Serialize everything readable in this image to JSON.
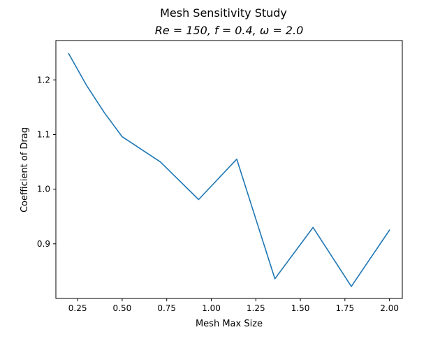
{
  "chart_data": {
    "type": "line",
    "title": "Mesh Sensitivity Study",
    "subtitle": "Re = 150, f = 0.4, ω = 2.0",
    "xlabel": "Mesh Max Size",
    "ylabel": "Coefficient of Drag",
    "xlim": [
      0.128,
      2.072
    ],
    "ylim": [
      0.8,
      1.272
    ],
    "xticks": [
      0.25,
      0.5,
      0.75,
      1.0,
      1.25,
      1.5,
      1.75,
      2.0
    ],
    "xtick_labels": [
      "0.25",
      "0.50",
      "0.75",
      "1.00",
      "1.25",
      "1.50",
      "1.75",
      "2.00"
    ],
    "yticks": [
      0.9,
      1.0,
      1.1,
      1.2
    ],
    "ytick_labels": [
      "0.9",
      "1.0",
      "1.1",
      "1.2"
    ],
    "grid": false,
    "series": [
      {
        "color": "#1f77b4",
        "x": [
          0.2,
          0.3,
          0.4,
          0.5,
          0.714,
          0.929,
          1.143,
          1.357,
          1.571,
          1.786,
          2.0
        ],
        "y": [
          1.248,
          1.19,
          1.14,
          1.096,
          1.05,
          0.981,
          1.055,
          0.836,
          0.93,
          0.822,
          0.925
        ]
      }
    ]
  }
}
